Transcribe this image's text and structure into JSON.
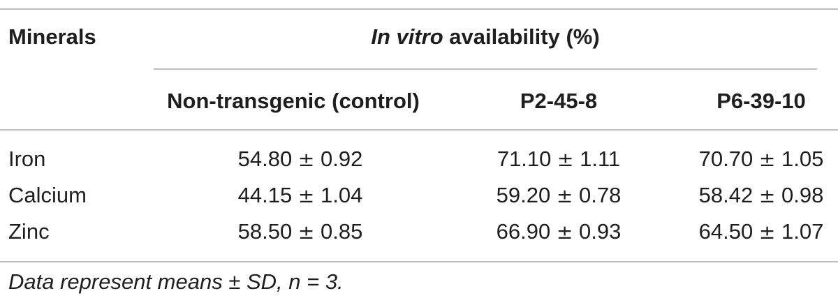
{
  "table": {
    "row_header_label": "Minerals",
    "group_header": {
      "italic_part": "In vitro",
      "rest": " availability (%)"
    },
    "columns": [
      "Non-transgenic (control)",
      "P2-45-8",
      "P6-39-10"
    ],
    "rows": [
      {
        "mineral": "Iron",
        "values": [
          {
            "mean": "54.80",
            "pm": "±",
            "sd": "0.92"
          },
          {
            "mean": "71.10",
            "pm": "±",
            "sd": "1.11"
          },
          {
            "mean": "70.70",
            "pm": "±",
            "sd": "1.05"
          }
        ]
      },
      {
        "mineral": "Calcium",
        "values": [
          {
            "mean": "44.15",
            "pm": "±",
            "sd": "1.04"
          },
          {
            "mean": "59.20",
            "pm": "±",
            "sd": "0.78"
          },
          {
            "mean": "58.42",
            "pm": "±",
            "sd": "0.98"
          }
        ]
      },
      {
        "mineral": "Zinc",
        "values": [
          {
            "mean": "58.50",
            "pm": "±",
            "sd": "0.85"
          },
          {
            "mean": "66.90",
            "pm": "±",
            "sd": "0.93"
          },
          {
            "mean": "64.50",
            "pm": "±",
            "sd": "1.07"
          }
        ]
      }
    ],
    "footnote": "Data represent means ± SD, n = 3."
  }
}
